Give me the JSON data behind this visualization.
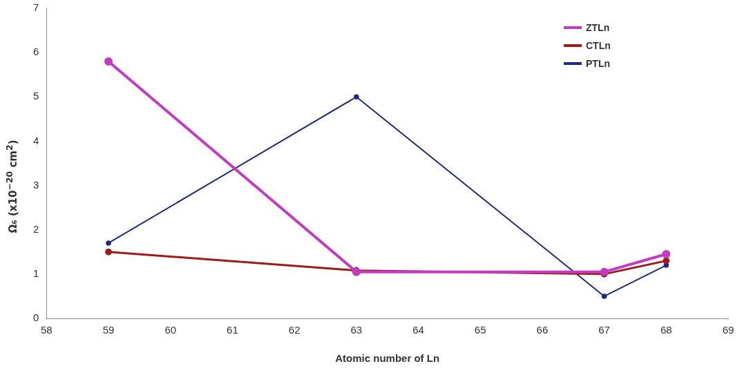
{
  "chart_data": {
    "type": "line",
    "xlabel": "Atomic number of Ln",
    "ylabel": "Ω₆ (x10$^{−20}$ cm$^{2}$)",
    "x": [
      59,
      63,
      67,
      68
    ],
    "series": [
      {
        "name": "ZTLn",
        "color": "#c23bc2",
        "values": [
          5.8,
          1.05,
          1.05,
          1.45
        ]
      },
      {
        "name": "CTLn",
        "color": "#a01818",
        "values": [
          1.5,
          1.08,
          1.0,
          1.3
        ]
      },
      {
        "name": "PTLn",
        "color": "#1f2a80",
        "values": [
          1.7,
          5.0,
          0.5,
          1.2
        ]
      }
    ],
    "xlim": [
      58,
      69
    ],
    "xticks": [
      58,
      59,
      60,
      61,
      62,
      63,
      64,
      65,
      66,
      67,
      68,
      69
    ],
    "ylim": [
      0,
      7
    ],
    "yticks": [
      0,
      1,
      2,
      3,
      4,
      5,
      6,
      7
    ],
    "grid": false,
    "legend": "top right",
    "marker": "circle",
    "line_style": "solid"
  }
}
